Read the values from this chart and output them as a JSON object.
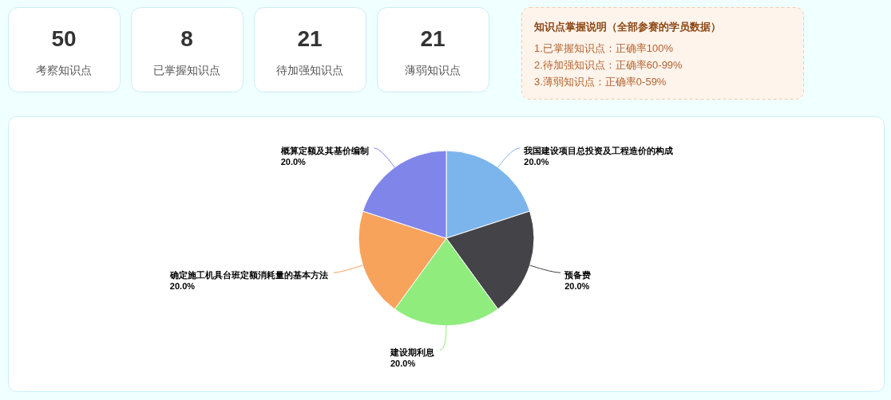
{
  "chart_data": [
    {
      "type": "other",
      "categories": [
        "考察知识点",
        "已掌握知识点",
        "待加强知识点",
        "薄弱知识点"
      ],
      "values": [
        50,
        8,
        21,
        21
      ],
      "data_labels": true
    },
    {
      "type": "other",
      "title": "知识点掌握说明（全部参赛的学员数据）",
      "annotations": [
        "1.已掌握知识点：正确率100%",
        "2.待加强知识点：正确率60-99%",
        "3.薄弱知识点：正确率0-59%"
      ]
    },
    {
      "type": "pie",
      "categories": [
        "我国建设项目总投资及工程造价的构成",
        "预备费",
        "建设期利息",
        "确定施工机具台班定额消耗量的基本方法",
        "概算定额及其基价编制"
      ],
      "values": [
        20,
        20,
        20,
        20,
        20
      ],
      "colors": [
        "#7cb5ec",
        "#434348",
        "#90ed7d",
        "#f7a35c",
        "#8085e9"
      ],
      "value_labels": [
        "20.0%",
        "20.0%",
        "20.0%",
        "20.0%",
        "20.0%"
      ]
    }
  ]
}
